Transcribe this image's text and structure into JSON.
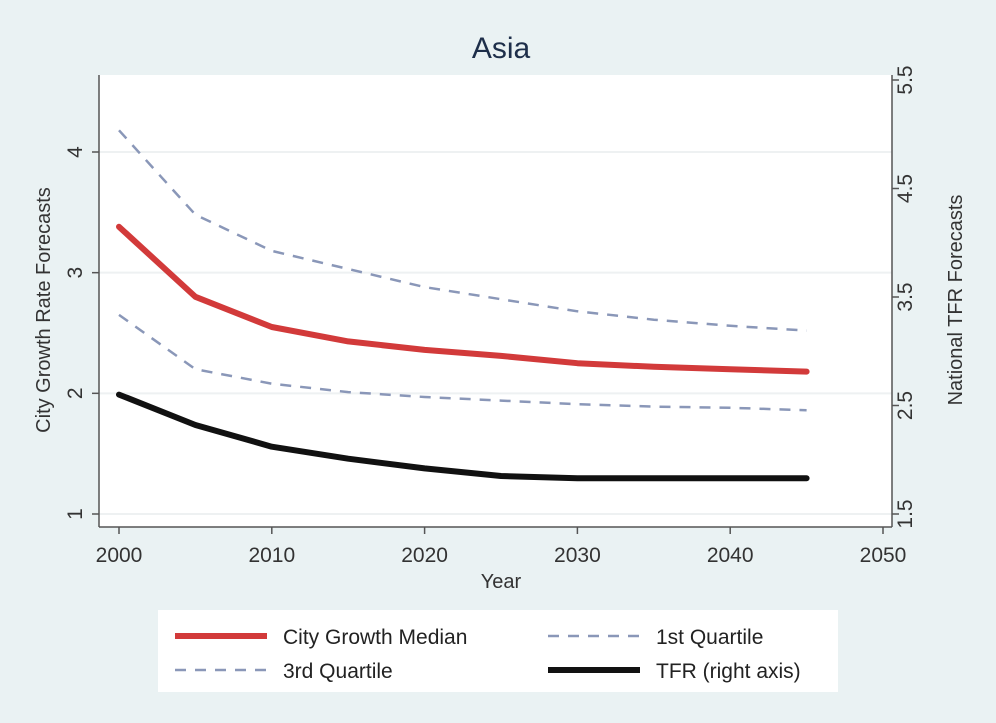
{
  "chart_data": {
    "type": "line",
    "title": "Asia",
    "xlabel": "Year",
    "ylabel_left": "City Growth Rate Forecasts",
    "ylabel_right": "National TFR Forecasts",
    "xlim": [
      2000,
      2050
    ],
    "ylim_left": [
      0.9,
      4.5
    ],
    "ylim_right": [
      1.4,
      5.5
    ],
    "x_ticks": [
      2000,
      2010,
      2020,
      2030,
      2040,
      2050
    ],
    "y_ticks_left": [
      1,
      2,
      3,
      4
    ],
    "y_ticks_right": [
      1.5,
      2.5,
      3.5,
      4.5,
      5.5
    ],
    "grid": true,
    "legend_position": "bottom",
    "x": [
      2000,
      2005,
      2010,
      2015,
      2020,
      2025,
      2030,
      2035,
      2040,
      2045
    ],
    "series": [
      {
        "name": "City Growth Median",
        "axis": "left",
        "style": "solid",
        "color": "#d23a3a",
        "values": [
          3.38,
          2.8,
          2.55,
          2.43,
          2.36,
          2.31,
          2.25,
          2.22,
          2.2,
          2.18
        ]
      },
      {
        "name": "1st Quartile",
        "axis": "left",
        "style": "dashed",
        "color": "#8a97b8",
        "values": [
          2.65,
          2.2,
          2.08,
          2.01,
          1.97,
          1.94,
          1.91,
          1.89,
          1.88,
          1.86
        ]
      },
      {
        "name": "3rd Quartile",
        "axis": "left",
        "style": "dashed",
        "color": "#8a97b8",
        "values": [
          4.18,
          3.48,
          3.18,
          3.03,
          2.88,
          2.78,
          2.68,
          2.61,
          2.56,
          2.52
        ]
      },
      {
        "name": "TFR (right axis)",
        "axis": "right",
        "style": "solid",
        "color": "#111111",
        "values": [
          2.6,
          2.32,
          2.12,
          2.01,
          1.92,
          1.85,
          1.83,
          1.83,
          1.83,
          1.83
        ]
      }
    ]
  }
}
